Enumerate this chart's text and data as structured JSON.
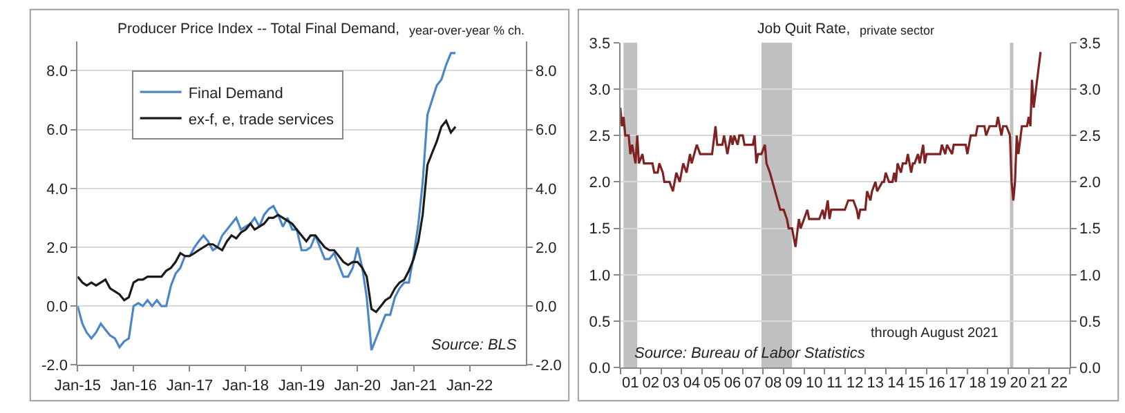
{
  "chart_data": [
    {
      "type": "line",
      "title": "Producer Price Index -- Total Final Demand,",
      "subtitle": "year-over-year % ch.",
      "x": [
        "2015-01",
        "2015-02",
        "2015-03",
        "2015-04",
        "2015-05",
        "2015-06",
        "2015-07",
        "2015-08",
        "2015-09",
        "2015-10",
        "2015-11",
        "2015-12",
        "2016-01",
        "2016-02",
        "2016-03",
        "2016-04",
        "2016-05",
        "2016-06",
        "2016-07",
        "2016-08",
        "2016-09",
        "2016-10",
        "2016-11",
        "2016-12",
        "2017-01",
        "2017-02",
        "2017-03",
        "2017-04",
        "2017-05",
        "2017-06",
        "2017-07",
        "2017-08",
        "2017-09",
        "2017-10",
        "2017-11",
        "2017-12",
        "2018-01",
        "2018-02",
        "2018-03",
        "2018-04",
        "2018-05",
        "2018-06",
        "2018-07",
        "2018-08",
        "2018-09",
        "2018-10",
        "2018-11",
        "2018-12",
        "2019-01",
        "2019-02",
        "2019-03",
        "2019-04",
        "2019-05",
        "2019-06",
        "2019-07",
        "2019-08",
        "2019-09",
        "2019-10",
        "2019-11",
        "2019-12",
        "2020-01",
        "2020-02",
        "2020-03",
        "2020-04",
        "2020-05",
        "2020-06",
        "2020-07",
        "2020-08",
        "2020-09",
        "2020-10",
        "2020-11",
        "2020-12",
        "2021-01",
        "2021-02",
        "2021-03",
        "2021-04",
        "2021-05",
        "2021-06",
        "2021-07",
        "2021-08",
        "2021-09",
        "2021-10"
      ],
      "series": [
        {
          "name": "Final Demand",
          "color": "#4a86c8",
          "values": [
            0.0,
            -0.6,
            -0.9,
            -1.1,
            -0.9,
            -0.6,
            -0.8,
            -1.0,
            -1.1,
            -1.4,
            -1.2,
            -1.1,
            0.0,
            0.1,
            0.0,
            0.2,
            0.0,
            0.2,
            0.0,
            0.0,
            0.7,
            1.1,
            1.3,
            1.7,
            1.7,
            2.0,
            2.2,
            2.4,
            2.2,
            1.9,
            2.0,
            2.4,
            2.6,
            2.8,
            3.0,
            2.6,
            2.7,
            2.8,
            3.0,
            2.7,
            3.1,
            3.3,
            3.4,
            3.1,
            2.7,
            3.0,
            2.6,
            2.6,
            1.9,
            1.9,
            2.0,
            2.4,
            2.0,
            1.6,
            1.6,
            1.8,
            1.4,
            1.0,
            1.0,
            1.3,
            2.0,
            1.3,
            0.3,
            -1.5,
            -1.1,
            -0.7,
            -0.3,
            -0.3,
            0.3,
            0.6,
            0.8,
            0.8,
            1.7,
            2.8,
            4.2,
            6.5,
            7.0,
            7.5,
            7.7,
            8.2,
            8.6,
            8.6
          ]
        },
        {
          "name": "ex-f, e, trade services",
          "color": "#1a1a1a",
          "values": [
            1.0,
            0.8,
            0.7,
            0.8,
            0.7,
            0.8,
            0.9,
            0.6,
            0.5,
            0.4,
            0.2,
            0.3,
            0.8,
            0.9,
            0.9,
            1.0,
            1.0,
            1.0,
            1.0,
            1.2,
            1.3,
            1.5,
            1.8,
            1.7,
            1.7,
            1.8,
            1.9,
            2.0,
            2.1,
            2.1,
            2.0,
            1.9,
            2.2,
            2.4,
            2.3,
            2.5,
            2.6,
            2.8,
            2.6,
            2.7,
            2.8,
            3.0,
            3.0,
            3.1,
            3.0,
            2.9,
            2.8,
            2.6,
            2.4,
            2.2,
            2.4,
            2.4,
            2.2,
            2.0,
            1.9,
            1.9,
            1.7,
            1.5,
            1.4,
            1.5,
            1.5,
            1.3,
            1.0,
            -0.1,
            -0.2,
            0.0,
            0.2,
            0.3,
            0.6,
            0.8,
            0.9,
            1.2,
            1.6,
            2.2,
            3.1,
            4.8,
            5.2,
            5.6,
            6.1,
            6.3,
            5.9,
            6.1
          ]
        }
      ],
      "xlim": [
        "2015-01",
        "2023-01"
      ],
      "xticks": [
        {
          "value": "2015-01",
          "label": "Jan-15"
        },
        {
          "value": "2016-01",
          "label": "Jan-16"
        },
        {
          "value": "2017-01",
          "label": "Jan-17"
        },
        {
          "value": "2018-01",
          "label": "Jan-18"
        },
        {
          "value": "2019-01",
          "label": "Jan-19"
        },
        {
          "value": "2020-01",
          "label": "Jan-20"
        },
        {
          "value": "2021-01",
          "label": "Jan-21"
        },
        {
          "value": "2022-01",
          "label": "Jan-22"
        }
      ],
      "ylim": [
        -2,
        9
      ],
      "yticks": [
        {
          "value": -2,
          "label": "-2.0"
        },
        {
          "value": 0,
          "label": "0.0"
        },
        {
          "value": 2,
          "label": "2.0"
        },
        {
          "value": 4,
          "label": "4.0"
        },
        {
          "value": 6,
          "label": "6.0"
        },
        {
          "value": 8,
          "label": "8.0"
        }
      ],
      "y2lim": [
        -2,
        9
      ],
      "y2ticks": [
        {
          "value": -2,
          "label": "-2.0"
        },
        {
          "value": 0,
          "label": "0.0"
        },
        {
          "value": 2,
          "label": "2.0"
        },
        {
          "value": 4,
          "label": "4.0"
        },
        {
          "value": 6,
          "label": "6.0"
        },
        {
          "value": 8,
          "label": "8.0"
        }
      ],
      "grid": "y",
      "legend": "top left",
      "line_style": "solid",
      "annotations": [
        "Source: BLS"
      ]
    },
    {
      "type": "line",
      "title": "Job Quit Rate,",
      "subtitle": "private sector",
      "x": [
        "2001-01",
        "2001-02",
        "2001-03",
        "2001-04",
        "2001-06",
        "2001-07",
        "2001-08",
        "2001-10",
        "2001-11",
        "2001-12",
        "2002-02",
        "2002-03",
        "2002-08",
        "2002-09",
        "2002-11",
        "2002-12",
        "2003-02",
        "2003-03",
        "2003-06",
        "2003-08",
        "2003-10",
        "2003-12",
        "2004-02",
        "2004-04",
        "2004-06",
        "2004-07",
        "2004-10",
        "2004-12",
        "2005-07",
        "2005-09",
        "2005-10",
        "2006-01",
        "2006-02",
        "2006-04",
        "2006-06",
        "2006-07",
        "2006-08",
        "2006-10",
        "2006-11",
        "2007-01",
        "2007-02",
        "2007-07",
        "2007-08",
        "2007-09",
        "2007-10",
        "2007-12",
        "2008-02",
        "2008-03",
        "2008-05",
        "2008-08",
        "2008-11",
        "2009-01",
        "2009-03",
        "2009-04",
        "2009-06",
        "2009-08",
        "2009-10",
        "2009-11",
        "2010-01",
        "2010-03",
        "2010-04",
        "2010-10",
        "2010-12",
        "2011-01",
        "2011-03",
        "2011-04",
        "2011-05",
        "2012-01",
        "2012-03",
        "2012-06",
        "2012-08",
        "2012-09",
        "2012-10",
        "2013-01",
        "2013-02",
        "2013-04",
        "2013-05",
        "2013-07",
        "2013-08",
        "2013-11",
        "2013-12",
        "2014-01",
        "2014-03",
        "2014-05",
        "2014-06",
        "2014-07",
        "2014-08",
        "2014-10",
        "2014-11",
        "2015-01",
        "2015-02",
        "2015-04",
        "2015-05",
        "2015-06",
        "2015-08",
        "2015-09",
        "2015-11",
        "2015-12",
        "2016-01",
        "2016-09",
        "2016-10",
        "2016-12",
        "2017-01",
        "2017-04",
        "2017-05",
        "2017-12",
        "2018-01",
        "2018-03",
        "2018-06",
        "2018-07",
        "2018-11",
        "2018-12",
        "2019-02",
        "2019-06",
        "2019-07",
        "2019-09",
        "2019-10",
        "2019-12",
        "2020-02",
        "2020-03",
        "2020-04",
        "2020-05",
        "2020-06",
        "2020-07",
        "2020-09",
        "2020-12",
        "2021-01",
        "2021-02",
        "2021-03",
        "2021-04",
        "2021-08"
      ],
      "series": [
        {
          "color": "#7f2222",
          "values": [
            2.8,
            2.6,
            2.7,
            2.5,
            2.5,
            2.3,
            2.4,
            2.2,
            2.5,
            2.2,
            2.3,
            2.2,
            2.2,
            2.1,
            2.1,
            2.2,
            2.1,
            2.0,
            2.0,
            1.9,
            2.1,
            2.0,
            2.2,
            2.1,
            2.3,
            2.2,
            2.4,
            2.3,
            2.3,
            2.6,
            2.4,
            2.4,
            2.5,
            2.3,
            2.5,
            2.4,
            2.5,
            2.4,
            2.5,
            2.5,
            2.4,
            2.4,
            2.5,
            2.2,
            2.3,
            2.3,
            2.4,
            2.2,
            2.1,
            1.9,
            1.7,
            1.7,
            1.6,
            1.5,
            1.5,
            1.3,
            1.6,
            1.5,
            1.6,
            1.7,
            1.6,
            1.6,
            1.7,
            1.6,
            1.8,
            1.6,
            1.7,
            1.7,
            1.8,
            1.8,
            1.7,
            1.6,
            1.7,
            1.7,
            1.9,
            1.8,
            1.9,
            2.0,
            1.9,
            2.0,
            2.0,
            2.1,
            2.0,
            2.0,
            2.1,
            2.0,
            2.2,
            2.1,
            2.2,
            2.2,
            2.3,
            2.1,
            2.2,
            2.2,
            2.3,
            2.2,
            2.4,
            2.2,
            2.3,
            2.3,
            2.4,
            2.3,
            2.4,
            2.3,
            2.4,
            2.4,
            2.3,
            2.5,
            2.5,
            2.6,
            2.6,
            2.5,
            2.6,
            2.6,
            2.7,
            2.5,
            2.6,
            2.6,
            2.5,
            2.0,
            1.8,
            2.0,
            2.5,
            2.3,
            2.6,
            2.6,
            2.7,
            2.6,
            3.1,
            2.8,
            3.4
          ]
        }
      ],
      "xlim": [
        "2001-01",
        "2023-01"
      ],
      "xticks": [
        {
          "value": "2001-07",
          "label": "01"
        },
        {
          "value": "2002-07",
          "label": "02"
        },
        {
          "value": "2003-07",
          "label": "03"
        },
        {
          "value": "2004-07",
          "label": "04"
        },
        {
          "value": "2005-07",
          "label": "05"
        },
        {
          "value": "2006-07",
          "label": "06"
        },
        {
          "value": "2007-07",
          "label": "07"
        },
        {
          "value": "2008-07",
          "label": "08"
        },
        {
          "value": "2009-07",
          "label": "09"
        },
        {
          "value": "2010-07",
          "label": "10"
        },
        {
          "value": "2011-07",
          "label": "11"
        },
        {
          "value": "2012-07",
          "label": "12"
        },
        {
          "value": "2013-07",
          "label": "13"
        },
        {
          "value": "2014-07",
          "label": "14"
        },
        {
          "value": "2015-07",
          "label": "15"
        },
        {
          "value": "2016-07",
          "label": "16"
        },
        {
          "value": "2017-07",
          "label": "17"
        },
        {
          "value": "2018-07",
          "label": "18"
        },
        {
          "value": "2019-07",
          "label": "19"
        },
        {
          "value": "2020-07",
          "label": "20"
        },
        {
          "value": "2021-07",
          "label": "21"
        },
        {
          "value": "2022-07",
          "label": "22"
        },
        {
          "value": "2001-01",
          "label": null
        },
        {
          "value": "2002-01",
          "label": null
        },
        {
          "value": "2003-01",
          "label": null
        },
        {
          "value": "2004-01",
          "label": null
        },
        {
          "value": "2005-01",
          "label": null
        },
        {
          "value": "2006-01",
          "label": null
        },
        {
          "value": "2007-01",
          "label": null
        },
        {
          "value": "2008-01",
          "label": null
        },
        {
          "value": "2009-01",
          "label": null
        },
        {
          "value": "2010-01",
          "label": null
        },
        {
          "value": "2011-01",
          "label": null
        },
        {
          "value": "2012-01",
          "label": null
        },
        {
          "value": "2013-01",
          "label": null
        },
        {
          "value": "2014-01",
          "label": null
        },
        {
          "value": "2015-01",
          "label": null
        },
        {
          "value": "2016-01",
          "label": null
        },
        {
          "value": "2017-01",
          "label": null
        },
        {
          "value": "2018-01",
          "label": null
        },
        {
          "value": "2019-01",
          "label": null
        },
        {
          "value": "2020-01",
          "label": null
        },
        {
          "value": "2021-01",
          "label": null
        },
        {
          "value": "2022-01",
          "label": null
        },
        {
          "value": "2023-01",
          "label": null
        }
      ],
      "ylim": [
        0,
        3.5
      ],
      "yticks": [
        {
          "value": 0,
          "label": "0.0"
        },
        {
          "value": 0.5,
          "label": "0.5"
        },
        {
          "value": 1,
          "label": "1.0"
        },
        {
          "value": 1.5,
          "label": "1.5"
        },
        {
          "value": 2,
          "label": "2.0"
        },
        {
          "value": 2.5,
          "label": "2.5"
        },
        {
          "value": 3,
          "label": "3.0"
        },
        {
          "value": 3.5,
          "label": "3.5"
        }
      ],
      "y2lim": [
        0,
        3.5
      ],
      "y2ticks": [
        {
          "value": 0,
          "label": "0.0"
        },
        {
          "value": 0.5,
          "label": "0.5"
        },
        {
          "value": 1,
          "label": "1.0"
        },
        {
          "value": 1.5,
          "label": "1.5"
        },
        {
          "value": 2,
          "label": "2.0"
        },
        {
          "value": 2.5,
          "label": "2.5"
        },
        {
          "value": 3,
          "label": "3.0"
        },
        {
          "value": 3.5,
          "label": "3.5"
        }
      ],
      "bands": [
        {
          "axis": "x",
          "from": "2001-03",
          "to": "2001-11",
          "color": "#c0c0c0"
        },
        {
          "axis": "x",
          "from": "2007-12",
          "to": "2009-06",
          "color": "#c0c0c0"
        },
        {
          "axis": "x",
          "from": "2020-02",
          "to": "2020-04",
          "color": "#c0c0c0"
        }
      ],
      "grid": "y",
      "line_style": "solid",
      "annotations": [
        "through August 2021",
        "Source: Bureau of Labor Statistics"
      ]
    }
  ]
}
